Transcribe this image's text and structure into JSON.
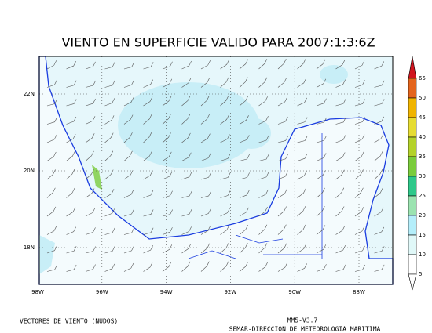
{
  "title": "VIENTO EN SUPERFICIE VALIDO PARA 2007:1:3:6Z",
  "lat_labels": [
    "22N",
    "20N",
    "18N"
  ],
  "lon_labels": [
    "98W",
    "96W",
    "94W",
    "92W",
    "90W",
    "88W"
  ],
  "colorbar": {
    "labels": [
      65,
      50,
      45,
      40,
      35,
      30,
      25,
      20,
      15,
      10,
      5
    ],
    "colors": [
      "#e4641c",
      "#f0b400",
      "#e6dc32",
      "#b4d22a",
      "#7acc3c",
      "#2ec88a",
      "#9be3b0",
      "#b4eefa",
      "#e0f8f8",
      "#ffffff"
    ],
    "top_color": "#d0141e"
  },
  "footer": {
    "left": "VECTORES DE VIENTO (NUDOS)",
    "model": "MM5-V3.7",
    "agency": "SEMAR-DIRECCION DE METEOROLOGIA MARITIMA"
  }
}
